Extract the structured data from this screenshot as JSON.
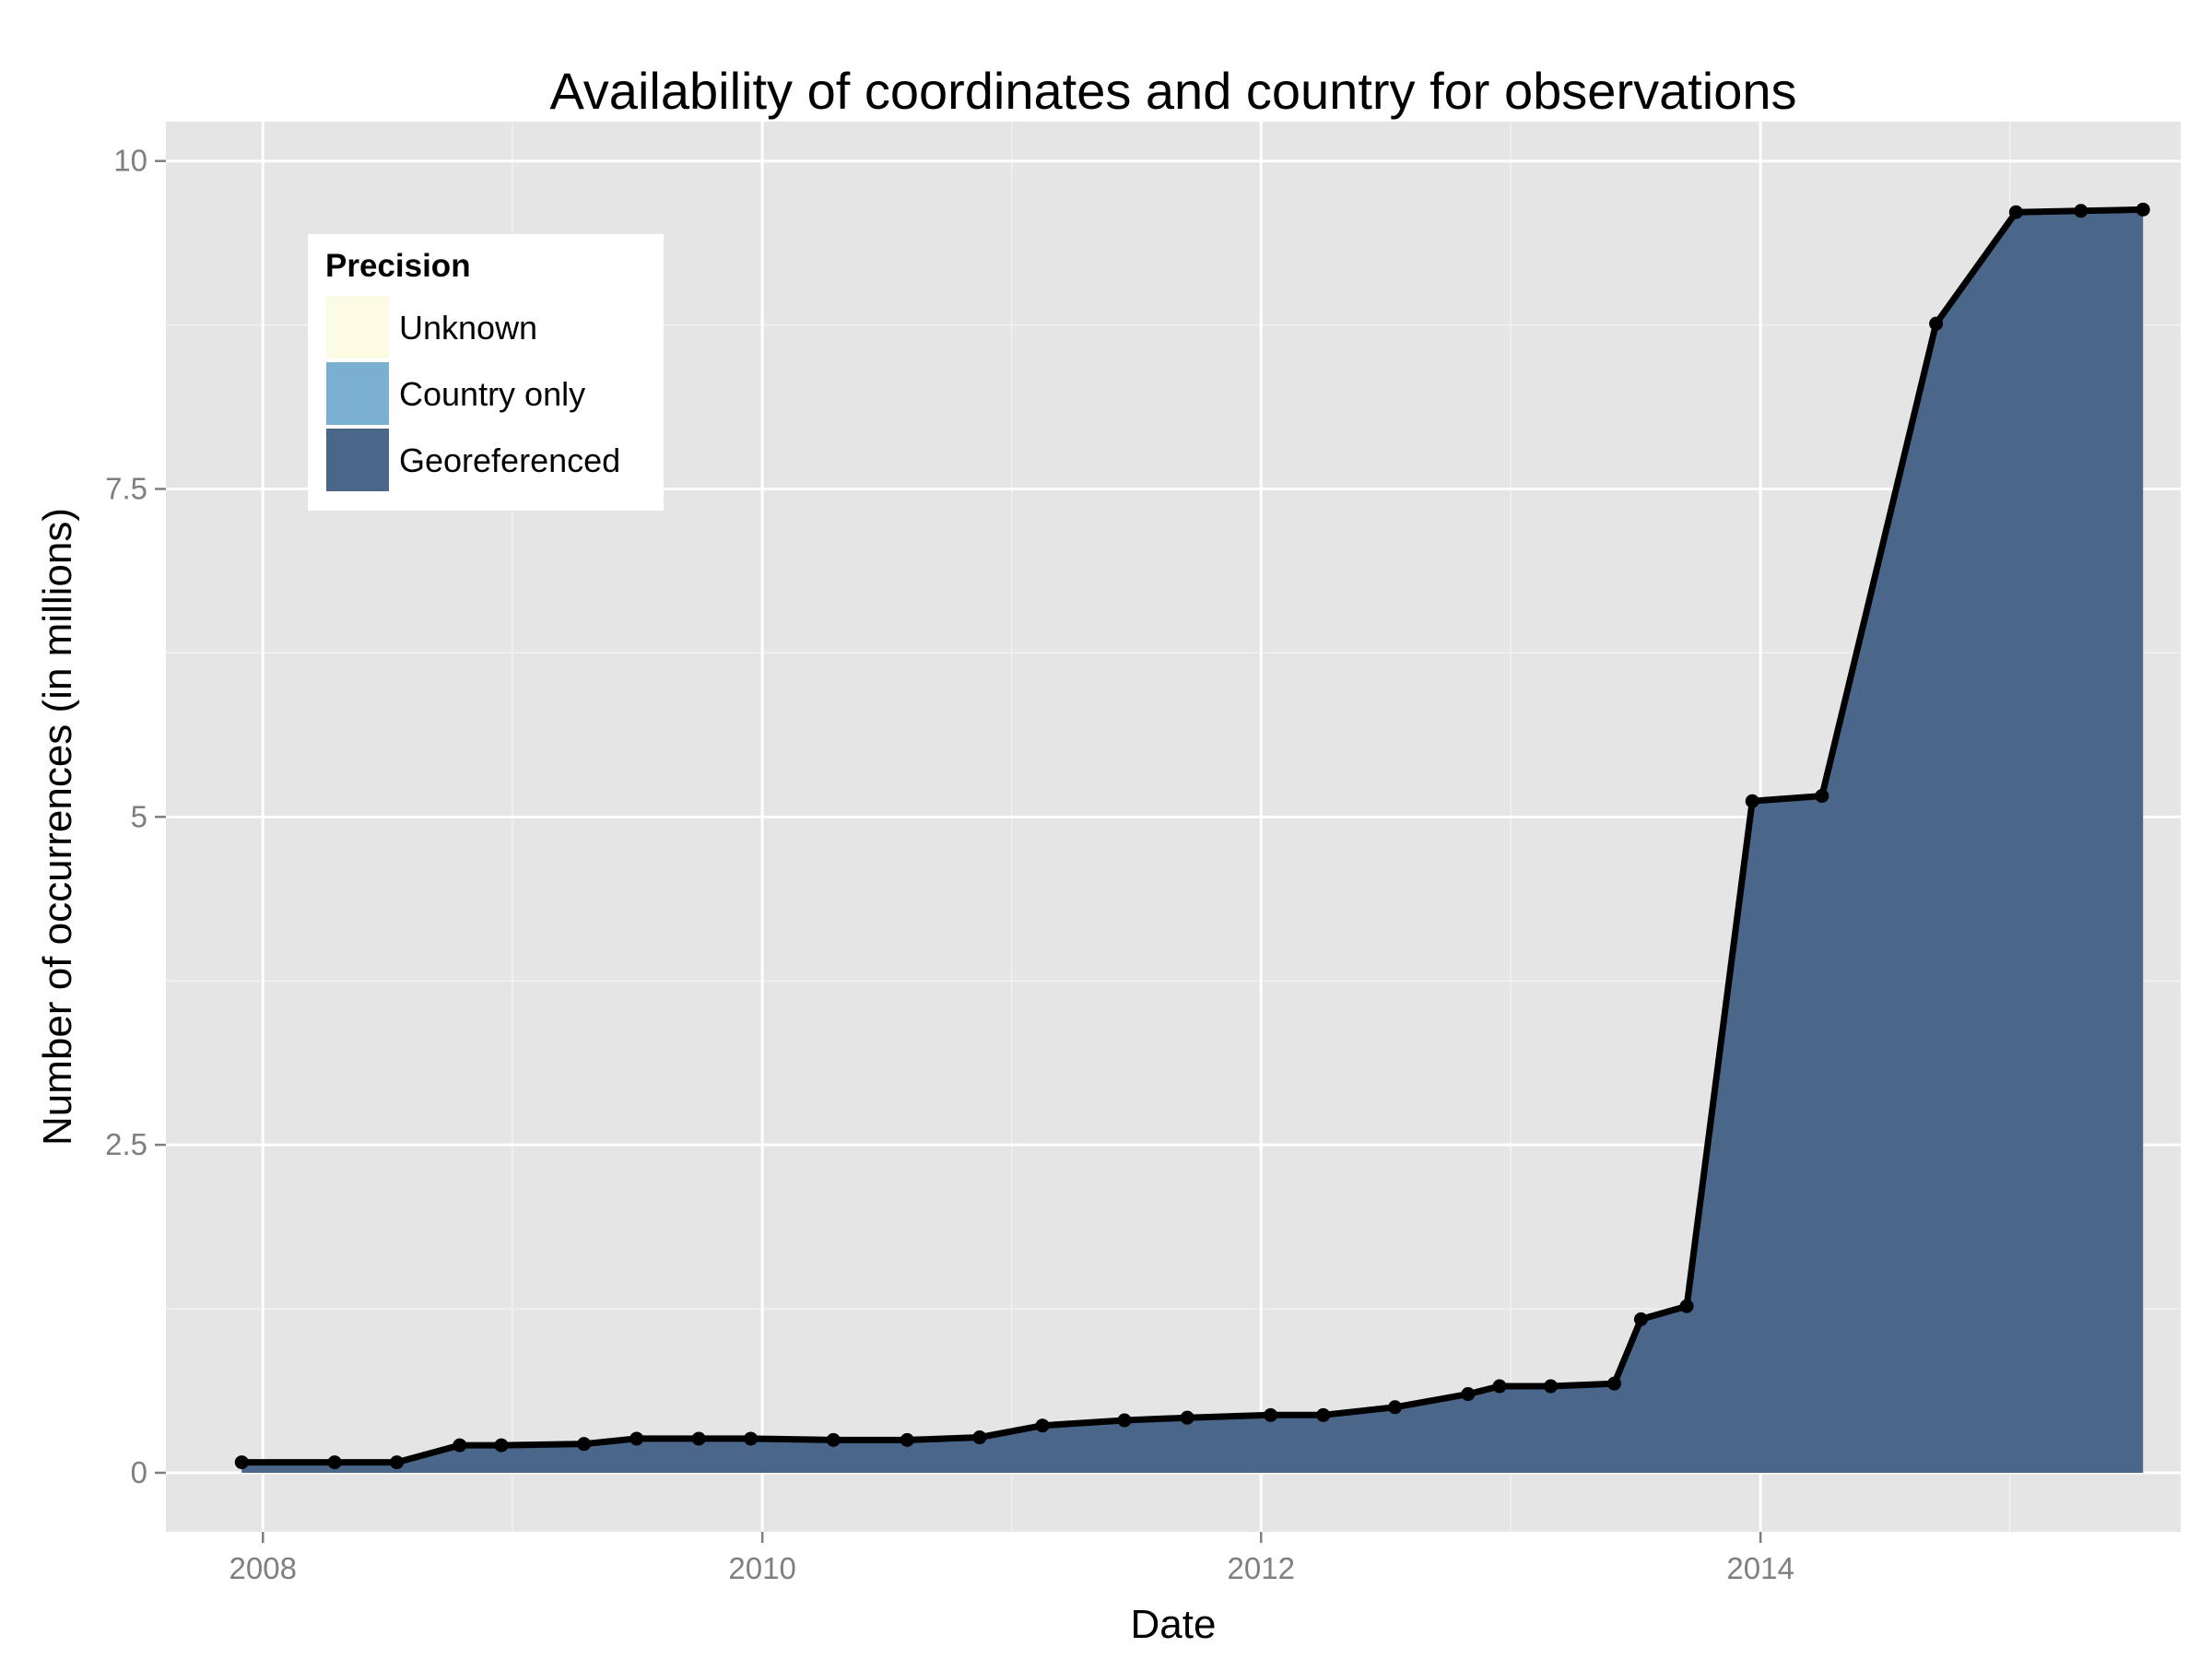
{
  "chart_data": {
    "type": "area",
    "title": "Availability of coordinates and country for observations",
    "xlabel": "Date",
    "ylabel": "Number of occurrences (in millions)",
    "xlim": [
      "2007-08-12",
      "2015-09-08"
    ],
    "ylim": [
      -0.45,
      10.3
    ],
    "x_ticks": [
      "2008-01-01",
      "2010-01-01",
      "2012-01-01",
      "2014-01-01"
    ],
    "x_tick_labels": [
      "2008",
      "2010",
      "2012",
      "2014"
    ],
    "y_ticks": [
      0,
      2.5,
      5,
      7.5,
      10
    ],
    "y_tick_labels": [
      "0",
      "2.5",
      "5",
      "7.5",
      "10"
    ],
    "grid": true,
    "legend": {
      "title": "Precision",
      "placement": "top-left",
      "entries": [
        {
          "label": "Unknown",
          "color": "#fcfce5"
        },
        {
          "label": "Country only",
          "color": "#7bafd2"
        },
        {
          "label": "Georeferenced",
          "color": "#4a6689"
        }
      ]
    },
    "x": [
      "2007-12-01",
      "2008-04-15",
      "2008-07-15",
      "2008-10-15",
      "2008-12-15",
      "2009-04-15",
      "2009-07-01",
      "2009-09-30",
      "2009-12-15",
      "2010-04-15",
      "2010-08-01",
      "2010-11-15",
      "2011-02-15",
      "2011-06-15",
      "2011-09-15",
      "2012-01-15",
      "2012-04-01",
      "2012-07-15",
      "2012-10-30",
      "2012-12-15",
      "2013-02-28",
      "2013-06-01",
      "2013-07-10",
      "2013-09-15",
      "2013-12-20",
      "2014-04-01",
      "2014-09-15",
      "2015-01-10",
      "2015-04-15",
      "2015-07-15"
    ],
    "series": [
      {
        "name": "Georeferenced",
        "color": "#4a6689",
        "values": [
          0.08,
          0.08,
          0.08,
          0.21,
          0.21,
          0.22,
          0.26,
          0.26,
          0.26,
          0.25,
          0.25,
          0.27,
          0.36,
          0.4,
          0.42,
          0.44,
          0.44,
          0.5,
          0.59,
          0.65,
          0.65,
          0.67,
          1.16,
          1.26,
          5.11,
          5.15,
          8.75,
          9.6,
          9.61,
          9.62
        ]
      },
      {
        "name": "Country only",
        "color": "#7bafd2",
        "values": [
          0,
          0,
          0,
          0,
          0,
          0,
          0,
          0,
          0,
          0,
          0,
          0,
          0,
          0,
          0,
          0,
          0,
          0,
          0.01,
          0.01,
          0.01,
          0.01,
          0.01,
          0.01,
          0.01,
          0.01,
          0.01,
          0.01,
          0.01,
          0.01
        ]
      },
      {
        "name": "Unknown",
        "color": "#fcfce5",
        "values": [
          0,
          0,
          0,
          0,
          0,
          0,
          0,
          0,
          0,
          0,
          0,
          0,
          0,
          0,
          0,
          0,
          0,
          0,
          0,
          0,
          0,
          0,
          0,
          0,
          0,
          0,
          0,
          0,
          0,
          0
        ]
      }
    ],
    "total_line": {
      "color": "#000000",
      "values": [
        0.08,
        0.08,
        0.08,
        0.21,
        0.21,
        0.22,
        0.26,
        0.26,
        0.26,
        0.25,
        0.25,
        0.27,
        0.36,
        0.4,
        0.42,
        0.44,
        0.44,
        0.5,
        0.6,
        0.66,
        0.66,
        0.68,
        1.17,
        1.27,
        5.12,
        5.16,
        8.76,
        9.61,
        9.62,
        9.63
      ]
    }
  }
}
